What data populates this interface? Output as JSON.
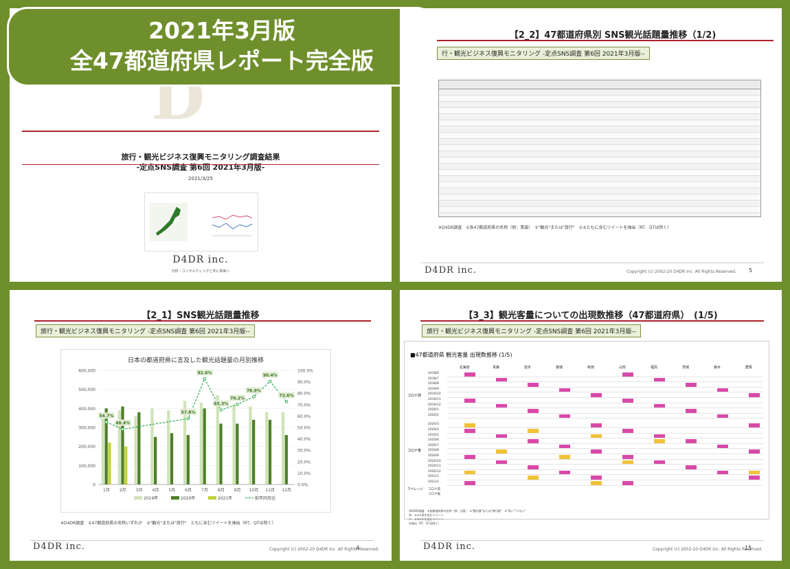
{
  "banner": {
    "line1": "2021年3月版",
    "line2": "全47都道府県レポート完全版"
  },
  "cover": {
    "title_line1": "旅行・観光ビジネス復興モニタリング調査結果",
    "title_line2": "-定点SNS調査 第6回 2021年3月版-",
    "date": "2021/3/25",
    "logo": "D4DR inc.",
    "logo_tagline": "分析・コンサルティングと共に未来へ"
  },
  "slide5": {
    "title": "【2_2】47都道府県別 SNS観光話題量推移（1/2)",
    "subtitle": "行・観光ビジネス復興モニタリング -定点SNS調査 第6回 2021年3月版--",
    "note": "※D4DR調査　①各47都道府県の名称（例：青森）　②\"観光\"または\"旅行\"　①②ともに含むツイートを抽出（RT、QTは除く）",
    "copyright": "Copyright (c) 2002-20 D4DR inc. All Rights Reserved.",
    "page": "5",
    "logo": "D4DR inc."
  },
  "slide4": {
    "title": "【2_1】SNS観光話題量推移",
    "subtitle": "旅行・観光ビジネス復興モニタリング -定点SNS調査 第6回 2021年3月版--",
    "note": "※D4DR調査　①47都道府県の名称いずれか　②\"観光\"または\"旅行\"　ともに含むツイートを抽出（RT、QTは除く）",
    "copyright": "Copyright (c) 2002-20 D4DR inc. All Rights Reserved.",
    "page": "4",
    "logo": "D4DR inc."
  },
  "slide15": {
    "title": "【3_3】観光客量についての出現数推移（47都道府県）　(1/5)",
    "subtitle": "旅行・観光ビジネス復興モニタリング -定点SNS調査 第6回 2021年3月版--",
    "table_title": "■47都道府県 観光客量 出現数推移 (1/5)",
    "prefectures": [
      "北海道",
      "青森",
      "岩手",
      "宮城",
      "秋田",
      "山形",
      "福島",
      "茨城",
      "栃木",
      "群馬"
    ],
    "group1_label": "コロナ前",
    "group2_label": "コロナ後",
    "row_labels": [
      "2018/6",
      "2018/7",
      "2018/8",
      "2019/9",
      "2019/10",
      "2019/11",
      "2019/12",
      "2020/1",
      "2020/2",
      "2020/3",
      "2020/4",
      "2020/5",
      "2020/6",
      "2020/7",
      "2020/8",
      "2020/9",
      "2020/10",
      "2020/11",
      "2020/12",
      "2021/1",
      "2021/2"
    ],
    "avg_label_1": "コロナ前",
    "avg_label_2": "コロナ後",
    "avg_label_side": "アベレージ",
    "notes": [
      "※D4DR調査　①各都道府県の名称（例：大阪）　②\"観光客\"または\"旅行客\"　③\"多い\"\"少ない\"",
      "多：①②③多を含むツイート",
      "少：①②③少を含むツイート",
      "を抽出（RT、QTは除く）"
    ],
    "copyright": "Copyright (c) 2002-20 D4DR inc. All Rights Reserved.",
    "page": "15",
    "logo": "D4DR inc."
  },
  "chart_data": {
    "type": "bar",
    "title": "日本の都道府県に言及した観光話題量の月別推移",
    "categories": [
      "1月",
      "2月",
      "3月",
      "4月",
      "5月",
      "6月",
      "7月",
      "8月",
      "9月",
      "10月",
      "11月",
      "12月"
    ],
    "series": [
      {
        "name": "2019年",
        "type": "bar",
        "color": "#cfe3b8",
        "values": [
          360000,
          390000,
          360000,
          400000,
          390000,
          440000,
          430000,
          470000,
          420000,
          410000,
          380000,
          380000
        ]
      },
      {
        "name": "2020年",
        "type": "bar",
        "color": "#4f7f2a",
        "values": [
          400000,
          410000,
          380000,
          250000,
          270000,
          260000,
          400000,
          320000,
          320000,
          340000,
          340000,
          260000
        ]
      },
      {
        "name": "2021年",
        "type": "bar",
        "color": "#c4d23a",
        "values": [
          220000,
          200000,
          null,
          null,
          null,
          null,
          null,
          null,
          null,
          null,
          null,
          null
        ]
      },
      {
        "name": "前年同月比",
        "type": "line",
        "axis": "right",
        "color": "#2aa84a",
        "values": [
          54.7,
          48.4,
          null,
          null,
          null,
          57.8,
          92.6,
          65.3,
          70.2,
          76.9,
          90.4,
          72.6
        ]
      }
    ],
    "left_axis": {
      "ticks": [
        "0",
        "100,000",
        "200,000",
        "300,000",
        "400,000",
        "500,000",
        "600,000"
      ],
      "ylim": [
        0,
        600000
      ]
    },
    "right_axis": {
      "ticks": [
        "0.0%",
        "10.0%",
        "20.0%",
        "30.0%",
        "40.0%",
        "50.0%",
        "60.0%",
        "70.0%",
        "80.0%",
        "90.0%",
        "100.0%"
      ],
      "ylim": [
        0,
        100
      ]
    },
    "data_labels": [
      "54.7%",
      "48.4%",
      "57.8%",
      "92.6%",
      "65.3%",
      "70.2%",
      "76.9%",
      "90.4%",
      "72.6%"
    ],
    "legend_position": "bottom",
    "grid": true
  }
}
